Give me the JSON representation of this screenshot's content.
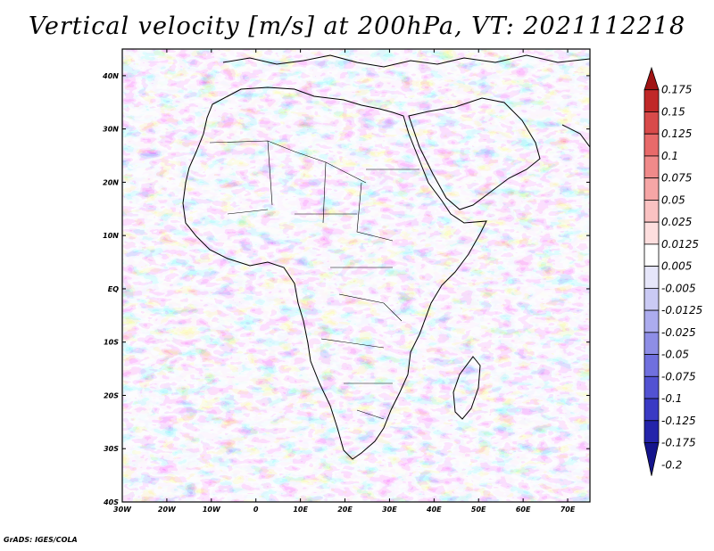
{
  "title": "Vertical velocity [m/s] at 200hPa, VT: 2021112218",
  "credit": "GrADS: IGES/COLA",
  "map": {
    "region": "Africa",
    "lon_range": [
      -30,
      75
    ],
    "lat_range": [
      -40,
      45
    ],
    "lat_ticks": [
      "40N",
      "30N",
      "20N",
      "10N",
      "EQ",
      "10S",
      "20S",
      "30S",
      "40S"
    ],
    "lon_ticks": [
      "30W",
      "20W",
      "10W",
      "0",
      "10E",
      "20E",
      "30E",
      "40E",
      "50E",
      "60E",
      "70E"
    ]
  },
  "colorbar": {
    "labels": [
      "0.175",
      "0.15",
      "0.125",
      "0.1",
      "0.075",
      "0.05",
      "0.025",
      "0.0125",
      "0.005",
      "-0.005",
      "-0.0125",
      "-0.025",
      "-0.05",
      "-0.075",
      "-0.1",
      "-0.125",
      "-0.175",
      "-0.2"
    ],
    "colors": [
      "#a01414",
      "#c02828",
      "#d84a4a",
      "#e86a6a",
      "#f08a8a",
      "#f6a6a6",
      "#fac2c2",
      "#fddede",
      "#ffffff",
      "#e6e6fa",
      "#cacaf4",
      "#acacee",
      "#8e8ee6",
      "#7070de",
      "#5252d2",
      "#3a3ac4",
      "#2424aa",
      "#14148c"
    ]
  }
}
